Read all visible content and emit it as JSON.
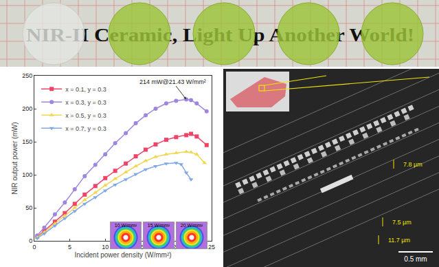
{
  "photo": {
    "caption": "NIR-II Ceramic, Light Up Another World!"
  },
  "chart_data": {
    "type": "line",
    "xlabel": "Incident power density (W/mm²)",
    "ylabel": "NIR output power (mW)",
    "xlim": [
      0,
      25
    ],
    "ylim": [
      0,
      250
    ],
    "xticks": [
      0,
      5,
      10,
      15,
      20,
      25
    ],
    "yticks": [
      0,
      50,
      100,
      150,
      200,
      250
    ],
    "grid": false,
    "legend": "upper left",
    "annotations": [
      {
        "text": "214 mW@21.43 W/mm²",
        "x": 21.43,
        "y": 214
      }
    ],
    "inset_labels": [
      "10 W/mm²",
      "15 W/mm²",
      "20 W/mm²"
    ],
    "series": [
      {
        "name": "x = 0.1, y = 0.3",
        "color": "#ee4466",
        "marker": "square",
        "x": [
          0.4,
          1.4,
          2.9,
          4.3,
          5.7,
          7.1,
          8.6,
          10.0,
          11.4,
          12.9,
          14.3,
          15.7,
          17.1,
          18.6,
          20.0,
          21.43,
          22.1,
          22.9,
          24.3
        ],
        "values": [
          6,
          15,
          29,
          42,
          56,
          70,
          83,
          95,
          106,
          117,
          128,
          138,
          146,
          153,
          157,
          160,
          162,
          158,
          145
        ]
      },
      {
        "name": "x = 0.3, y = 0.3",
        "color": "#9e86e0",
        "marker": "circle",
        "x": [
          0.4,
          1.4,
          2.9,
          4.3,
          5.7,
          7.1,
          8.6,
          10.0,
          11.4,
          12.9,
          14.3,
          15.7,
          17.1,
          18.6,
          20.0,
          21.43,
          22.1,
          22.9,
          24.3
        ],
        "values": [
          8,
          20,
          40,
          58,
          78,
          98,
          115,
          131,
          148,
          163,
          178,
          190,
          200,
          208,
          212,
          214,
          213,
          208,
          196
        ]
      },
      {
        "name": "x = 0.5, y = 0.3",
        "color": "#f2d64e",
        "marker": "triangle-up",
        "x": [
          0.4,
          1.4,
          2.9,
          4.3,
          5.7,
          7.1,
          8.6,
          10.0,
          11.4,
          12.9,
          14.3,
          15.7,
          17.1,
          18.6,
          20.0,
          21.43,
          22.1,
          22.9,
          24.0
        ],
        "values": [
          5,
          13,
          26,
          38,
          50,
          62,
          73,
          84,
          94,
          104,
          113,
          121,
          127,
          131,
          133,
          135,
          134,
          131,
          118
        ]
      },
      {
        "name": "x = 0.7, y = 0.3",
        "color": "#80a8e6",
        "marker": "triangle-down",
        "x": [
          0.4,
          1.4,
          2.9,
          4.3,
          5.7,
          7.1,
          8.6,
          10.0,
          11.4,
          12.9,
          14.3,
          15.7,
          17.1,
          18.6,
          20.0,
          20.7,
          21.43,
          22.1
        ],
        "values": [
          4,
          11,
          23,
          34,
          45,
          56,
          66,
          76,
          85,
          93,
          101,
          108,
          113,
          117,
          118,
          116,
          103,
          93
        ]
      }
    ]
  },
  "micrograph": {
    "scale_bar": "0.5 mm",
    "labels": [
      "7.8 µm",
      "7.5 µm",
      "11.7 µm"
    ]
  }
}
